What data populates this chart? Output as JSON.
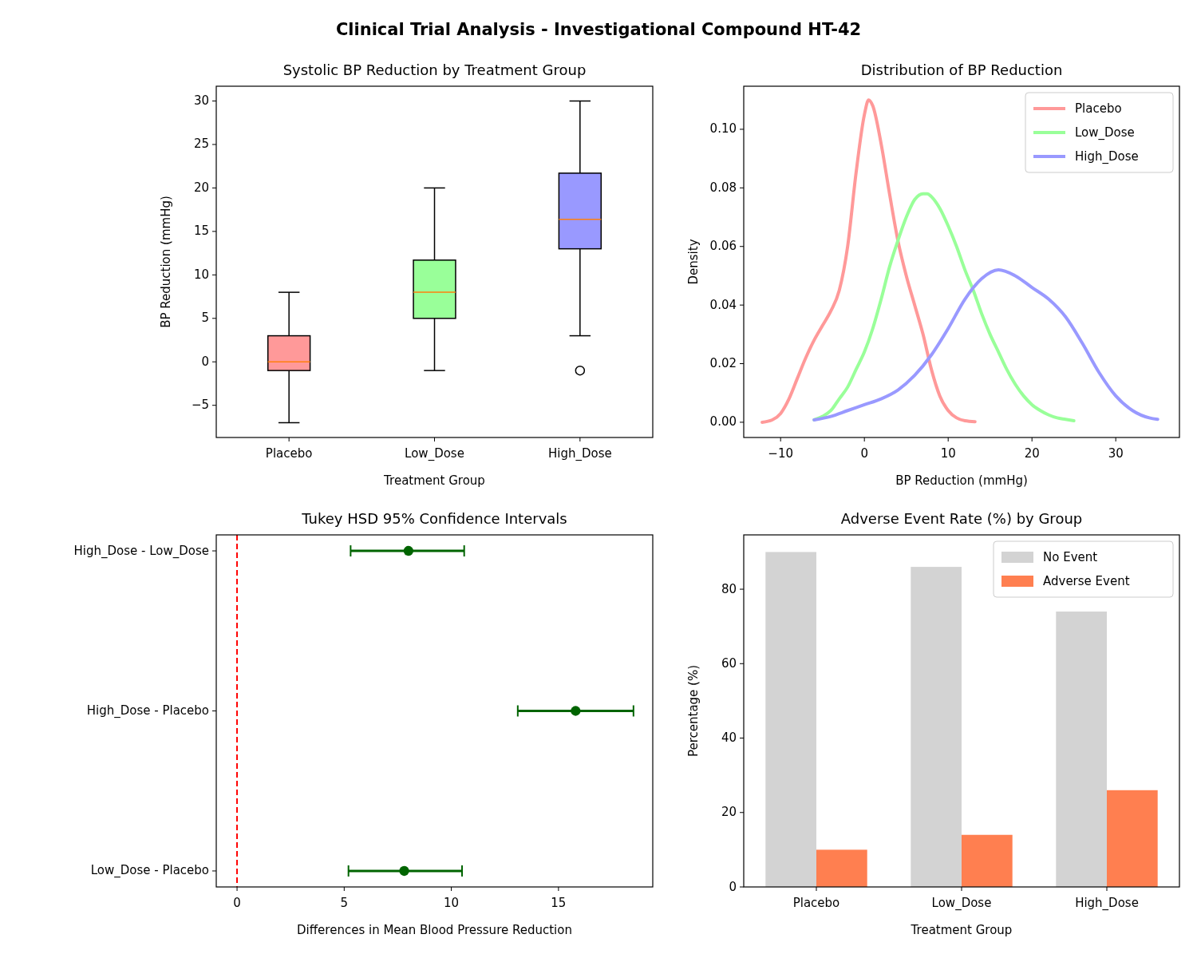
{
  "chart_data": [
    {
      "type": "other",
      "title": "Clinical Trial Analysis - Investigational Compound HT-42"
    },
    {
      "type": "box",
      "title": "Systolic BP Reduction by Treatment Group",
      "xlabel": "Treatment Group",
      "ylabel": "BP Reduction (mmHg)",
      "categories": [
        "Placebo",
        "Low_Dose",
        "High_Dose"
      ],
      "colors": [
        "#ff9999",
        "#99ff99",
        "#9999ff"
      ],
      "boxes": [
        {
          "low": -7,
          "q1": -1,
          "median": 0,
          "q3": 3,
          "high": 8
        },
        {
          "low": -1,
          "q1": 5,
          "median": 8,
          "q3": 11.7,
          "high": 20
        },
        {
          "low": 3,
          "q1": 13,
          "median": 16.4,
          "q3": 21.7,
          "high": 30,
          "outliers": [
            -1
          ]
        }
      ],
      "ylim": [
        -8.7,
        31.7
      ],
      "yticks": [
        {
          "value": -5,
          "label": "−5"
        },
        0,
        5,
        10,
        15,
        20,
        25,
        30
      ]
    },
    {
      "type": "line",
      "title": "Distribution of BP Reduction",
      "xlabel": "BP Reduction (mmHg)",
      "ylabel": "Density",
      "legend": "top right",
      "xlim": [
        -14.4,
        37.6
      ],
      "xticks": [
        {
          "value": -10,
          "label": "−10"
        },
        0,
        10,
        20,
        30
      ],
      "ylim": [
        -0.0052,
        0.1147
      ],
      "yticks": [
        {
          "value": 0,
          "label": "0.00"
        },
        {
          "value": 0.02,
          "label": "0.02"
        },
        {
          "value": 0.04,
          "label": "0.04"
        },
        {
          "value": 0.06,
          "label": "0.06"
        },
        {
          "value": 0.08,
          "label": "0.08"
        },
        {
          "value": 0.1,
          "label": "0.10"
        }
      ],
      "series": [
        {
          "name": "Placebo",
          "color": "#ff9999",
          "x": [
            -12.2,
            -11,
            -10,
            -9,
            -8,
            -7,
            -6,
            -5,
            -4,
            -3,
            -2,
            -1,
            0,
            0.5,
            1,
            2,
            3,
            4,
            5,
            6,
            7,
            8,
            9,
            10,
            11,
            12,
            13.2
          ],
          "values": [
            0,
            0.0008,
            0.003,
            0.008,
            0.015,
            0.022,
            0.028,
            0.033,
            0.038,
            0.045,
            0.06,
            0.085,
            0.105,
            0.11,
            0.108,
            0.095,
            0.078,
            0.062,
            0.05,
            0.04,
            0.03,
            0.018,
            0.009,
            0.004,
            0.0015,
            0.0005,
            0.0002
          ]
        },
        {
          "name": "Low_Dose",
          "color": "#99ff99",
          "x": [
            -6,
            -5,
            -4,
            -3,
            -2,
            -1,
            0,
            1,
            2,
            3,
            4,
            5,
            6,
            7,
            7.5,
            8,
            9,
            10,
            11,
            12,
            13,
            14,
            15,
            16,
            17,
            18,
            19,
            20,
            21,
            22,
            23,
            24,
            25
          ],
          "values": [
            0.0008,
            0.002,
            0.004,
            0.008,
            0.012,
            0.018,
            0.024,
            0.032,
            0.042,
            0.053,
            0.062,
            0.07,
            0.076,
            0.078,
            0.078,
            0.077,
            0.073,
            0.067,
            0.06,
            0.052,
            0.045,
            0.037,
            0.03,
            0.024,
            0.018,
            0.013,
            0.009,
            0.006,
            0.004,
            0.0025,
            0.0015,
            0.001,
            0.0005
          ]
        },
        {
          "name": "High_Dose",
          "color": "#9999ff",
          "x": [
            -6,
            -4,
            -2,
            0,
            2,
            4,
            6,
            8,
            10,
            12,
            14,
            16,
            18,
            20,
            22,
            24,
            26,
            28,
            30,
            32,
            34,
            35
          ],
          "values": [
            0.0008,
            0.002,
            0.004,
            0.006,
            0.008,
            0.011,
            0.016,
            0.023,
            0.032,
            0.042,
            0.049,
            0.052,
            0.05,
            0.046,
            0.042,
            0.036,
            0.027,
            0.017,
            0.009,
            0.004,
            0.0015,
            0.001
          ]
        }
      ]
    },
    {
      "type": "scatter",
      "orientation": "horizontal",
      "title": "Tukey HSD 95% Confidence Intervals",
      "xlabel": "Differences in Mean Blood Pressure Reduction",
      "categories": [
        "High_Dose - Low_Dose",
        "High_Dose - Placebo",
        "Low_Dose - Placebo"
      ],
      "values": [
        8.0,
        15.8,
        7.8
      ],
      "errors": [
        [
          5.3,
          10.6
        ],
        [
          13.1,
          18.5
        ],
        [
          5.2,
          10.5
        ]
      ],
      "color": "#006400",
      "marker": "circle",
      "xlim": [
        -0.97,
        19.4
      ],
      "xticks": [
        0,
        5,
        10,
        15
      ],
      "ref_lines": [
        {
          "axis": "x",
          "value": 0,
          "color": "#ff0000",
          "line_style": "dashed"
        }
      ]
    },
    {
      "type": "bar",
      "title": "Adverse Event Rate (%) by Group",
      "xlabel": "Treatment Group",
      "ylabel": "Percentage (%)",
      "legend": "top right",
      "categories": [
        "Placebo",
        "Low_Dose",
        "High_Dose"
      ],
      "series": [
        {
          "name": "No Event",
          "color": "#d3d3d3",
          "values": [
            90,
            86,
            74
          ]
        },
        {
          "name": "Adverse Event",
          "color": "#ff7f50",
          "values": [
            10,
            14,
            26
          ]
        }
      ],
      "ylim": [
        0,
        94.6
      ],
      "yticks": [
        0,
        20,
        40,
        60,
        80
      ]
    }
  ]
}
